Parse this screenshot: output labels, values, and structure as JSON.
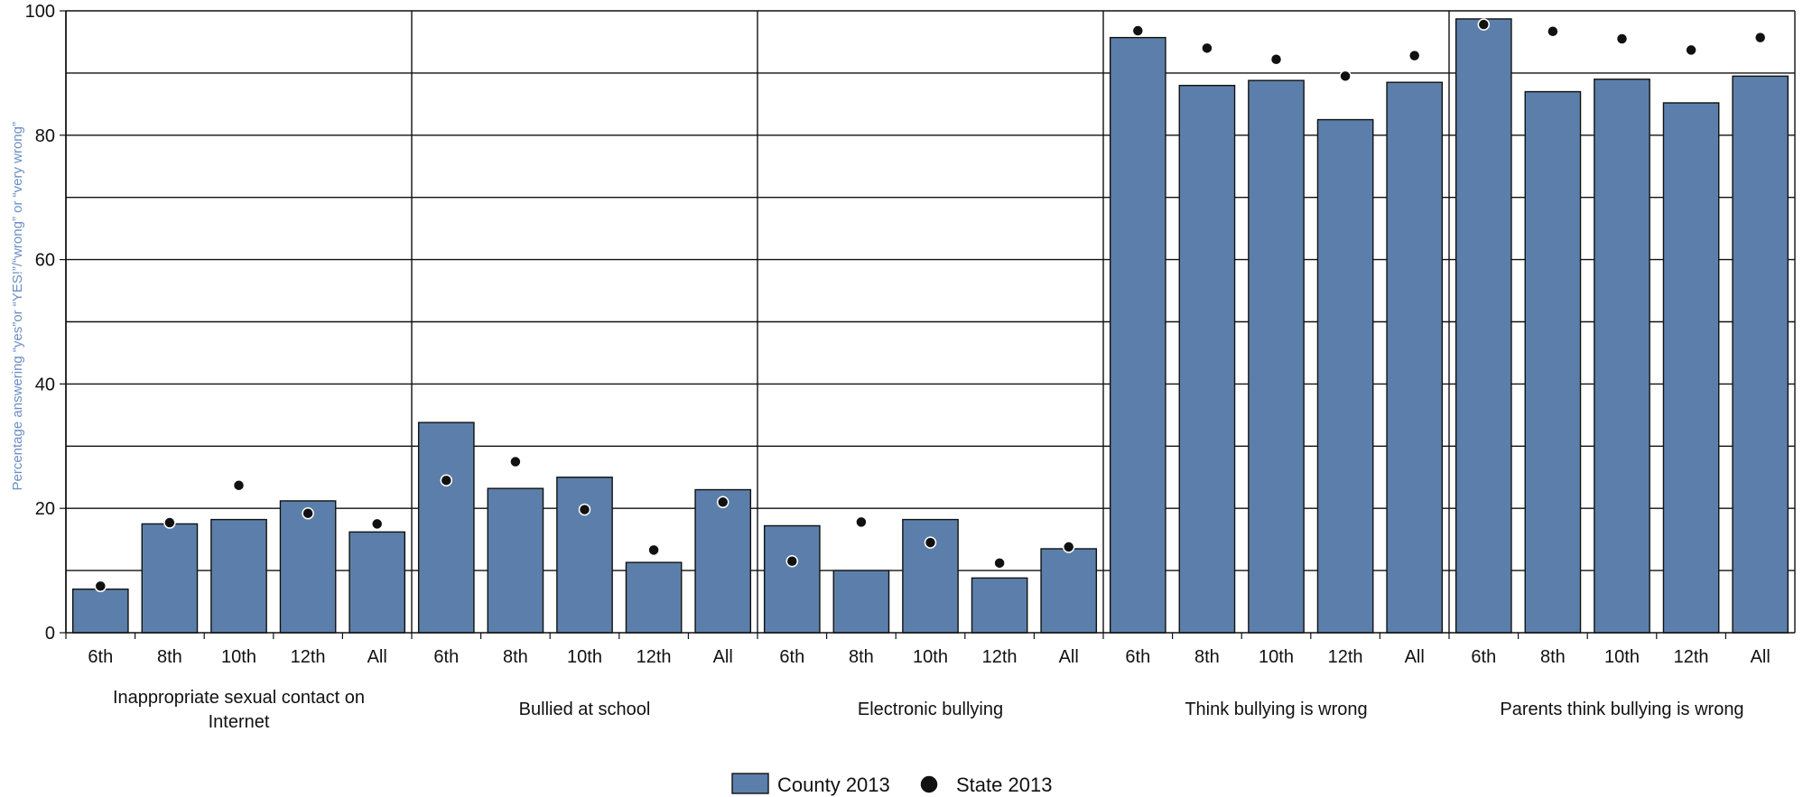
{
  "chart_data": {
    "type": "bar",
    "ylabel": "Percentage answering “yes”or “YES!”/“wrong” or “very wrong”",
    "ylim": [
      0,
      100
    ],
    "yticks": [
      0,
      20,
      40,
      60,
      80,
      100
    ],
    "grid": true,
    "legend_position": "bottom-center",
    "subcategories": [
      "6th",
      "8th",
      "10th",
      "12th",
      "All"
    ],
    "groups": [
      {
        "name": "Inappropriate sexual contact on Internet",
        "label_lines": [
          "Inappropriate sexual contact on",
          "Internet"
        ],
        "county": [
          7,
          17.5,
          18.2,
          21.2,
          16.2
        ],
        "state": [
          7.5,
          17.7,
          23.7,
          19.2,
          17.5
        ]
      },
      {
        "name": "Bullied at school",
        "label_lines": [
          "Bullied at school"
        ],
        "county": [
          33.8,
          23.2,
          25,
          11.3,
          23
        ],
        "state": [
          24.5,
          27.5,
          19.8,
          13.3,
          21
        ]
      },
      {
        "name": "Electronic bullying",
        "label_lines": [
          "Electronic bullying"
        ],
        "county": [
          17.2,
          10,
          18.2,
          8.8,
          13.5
        ],
        "state": [
          11.5,
          17.8,
          14.5,
          11.2,
          13.8
        ]
      },
      {
        "name": "Think bullying is wrong",
        "label_lines": [
          "Think bullying is wrong"
        ],
        "county": [
          95.7,
          88,
          88.8,
          82.5,
          88.5
        ],
        "state": [
          96.8,
          94,
          92.2,
          89.5,
          92.8
        ]
      },
      {
        "name": "Parents think bullying is wrong",
        "label_lines": [
          "Parents think bullying is wrong"
        ],
        "county": [
          98.7,
          87,
          89,
          85.2,
          89.5
        ],
        "state": [
          97.8,
          96.7,
          95.5,
          93.7,
          95.7
        ]
      }
    ],
    "series": [
      {
        "name": "County 2013",
        "kind": "bar",
        "color": "#5b7faa"
      },
      {
        "name": "State 2013",
        "kind": "dot",
        "color": "#111111"
      }
    ]
  }
}
